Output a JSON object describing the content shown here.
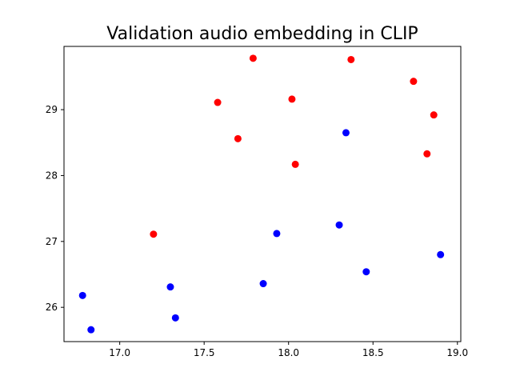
{
  "chart_data": {
    "type": "scatter",
    "title": "Validation audio embedding in CLIP",
    "xlabel": "",
    "ylabel": "",
    "xlim": [
      16.67,
      19.02
    ],
    "ylim": [
      25.48,
      29.96
    ],
    "xticks": [
      17.0,
      17.5,
      18.0,
      18.5,
      19.0
    ],
    "xtick_labels": [
      "17.0",
      "17.5",
      "18.0",
      "18.5",
      "19.0"
    ],
    "yticks": [
      26,
      27,
      28,
      29
    ],
    "ytick_labels": [
      "26",
      "27",
      "28",
      "29"
    ],
    "grid": false,
    "series": [
      {
        "color": "#ff0000",
        "points": [
          {
            "x": 17.79,
            "y": 29.78
          },
          {
            "x": 18.37,
            "y": 29.76
          },
          {
            "x": 18.74,
            "y": 29.43
          },
          {
            "x": 17.58,
            "y": 29.11
          },
          {
            "x": 18.02,
            "y": 29.16
          },
          {
            "x": 18.86,
            "y": 28.92
          },
          {
            "x": 17.7,
            "y": 28.56
          },
          {
            "x": 18.82,
            "y": 28.33
          },
          {
            "x": 18.04,
            "y": 28.17
          },
          {
            "x": 17.2,
            "y": 27.11
          }
        ]
      },
      {
        "color": "#0000ff",
        "points": [
          {
            "x": 18.34,
            "y": 28.65
          },
          {
            "x": 18.3,
            "y": 27.25
          },
          {
            "x": 17.93,
            "y": 27.12
          },
          {
            "x": 18.46,
            "y": 26.54
          },
          {
            "x": 18.9,
            "y": 26.8
          },
          {
            "x": 17.85,
            "y": 26.36
          },
          {
            "x": 17.3,
            "y": 26.31
          },
          {
            "x": 16.78,
            "y": 26.18
          },
          {
            "x": 17.33,
            "y": 25.84
          },
          {
            "x": 16.83,
            "y": 25.66
          }
        ]
      }
    ]
  }
}
